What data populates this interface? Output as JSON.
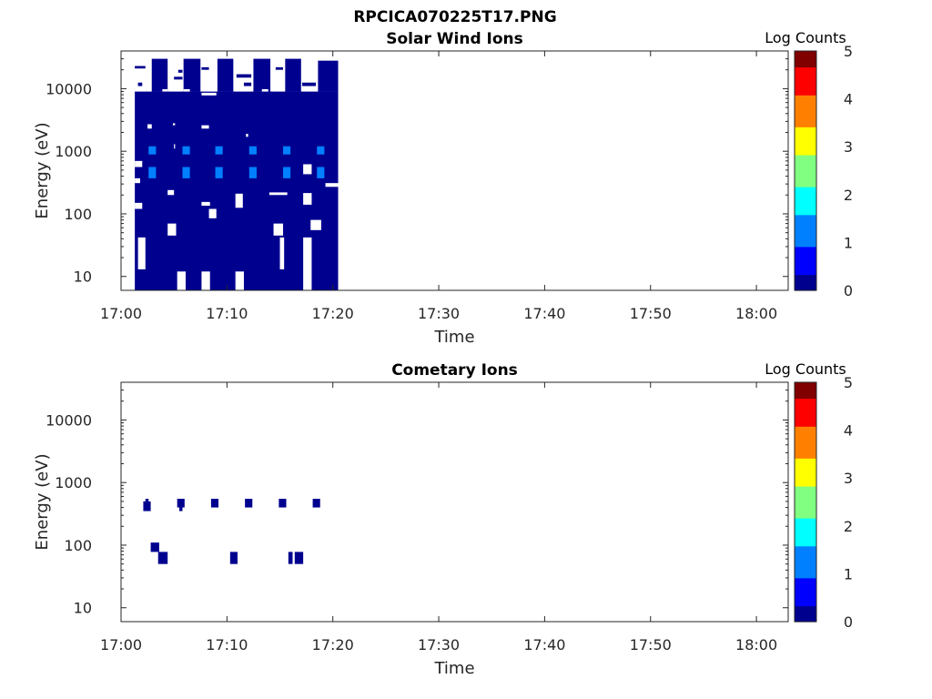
{
  "figure_title": "RPCICA070225T17.PNG",
  "colormap": [
    "#00008f",
    "#0000ff",
    "#0080ff",
    "#00ffff",
    "#80ff80",
    "#ffff00",
    "#ff8000",
    "#ff0000",
    "#800000"
  ],
  "chart_data": [
    {
      "type": "heatmap",
      "title": "Solar Wind Ions",
      "xlabel": "Time",
      "ylabel": "Energy (eV)",
      "colorbar_label": "Log Counts",
      "colorbar_ticks": [
        "0",
        "1",
        "2",
        "3",
        "4",
        "5"
      ],
      "colorbar_range": [
        0,
        5
      ],
      "xlim": [
        "17:00",
        "18:03"
      ],
      "ylim": [
        6,
        40000
      ],
      "y_scale": "log",
      "x_ticks": [
        "17:00",
        "17:10",
        "17:20",
        "17:30",
        "17:40",
        "17:50",
        "18:00"
      ],
      "y_ticks": [
        "10",
        "100",
        "1000",
        "10000"
      ],
      "grid": false,
      "cells": [
        {
          "t0": "17:01.3",
          "t1": "17:20.5",
          "e0": 6,
          "e1": 9000,
          "log_counts": 0.2
        },
        {
          "t0": "17:02.9",
          "t1": "17:04.4",
          "e0": 9000,
          "e1": 30000,
          "log_counts": 0.2
        },
        {
          "t0": "17:05.9",
          "t1": "17:07.5",
          "e0": 9000,
          "e1": 30000,
          "log_counts": 0.2
        },
        {
          "t0": "17:09.1",
          "t1": "17:10.6",
          "e0": 9000,
          "e1": 30000,
          "log_counts": 0.2
        },
        {
          "t0": "17:12.5",
          "t1": "17:14.1",
          "e0": 9000,
          "e1": 30000,
          "log_counts": 0.2
        },
        {
          "t0": "17:15.5",
          "t1": "17:17.0",
          "e0": 9000,
          "e1": 30000,
          "log_counts": 0.2
        },
        {
          "t0": "17:18.6",
          "t1": "17:20.5",
          "e0": 9000,
          "e1": 28000,
          "log_counts": 0.2
        },
        {
          "t0": "17:01.3",
          "t1": "17:02.8",
          "e0": 9000,
          "e1": 28000,
          "log_counts": null
        },
        {
          "t0": "17:04.5",
          "t1": "17:05.8",
          "e0": 9000,
          "e1": 30000,
          "log_counts": null
        },
        {
          "t0": "17:07.6",
          "t1": "17:09.0",
          "e0": 9000,
          "e1": 30000,
          "log_counts": null
        },
        {
          "t0": "17:10.7",
          "t1": "17:12.4",
          "e0": 9000,
          "e1": 30000,
          "log_counts": null
        },
        {
          "t0": "17:14.2",
          "t1": "17:15.4",
          "e0": 9000,
          "e1": 30000,
          "log_counts": null
        },
        {
          "t0": "17:17.1",
          "t1": "17:18.5",
          "e0": 9000,
          "e1": 30000,
          "log_counts": null
        },
        {
          "t0": "17:01.3",
          "t1": "17:02.3",
          "e0": 21000,
          "e1": 23000,
          "log_counts": 0.2
        },
        {
          "t0": "17:05.4",
          "t1": "17:05.8",
          "e0": 18000,
          "e1": 20000,
          "log_counts": 0.2
        },
        {
          "t0": "17:05.0",
          "t1": "17:05.8",
          "e0": 14000,
          "e1": 15500,
          "log_counts": 0.2
        },
        {
          "t0": "17:07.6",
          "t1": "17:08.3",
          "e0": 20000,
          "e1": 22000,
          "log_counts": 0.2
        },
        {
          "t0": "17:10.9",
          "t1": "17:12.3",
          "e0": 15000,
          "e1": 17000,
          "log_counts": 0.2
        },
        {
          "t0": "17:11.6",
          "t1": "17:12.3",
          "e0": 11000,
          "e1": 12500,
          "log_counts": 0.2
        },
        {
          "t0": "17:14.6",
          "t1": "17:15.3",
          "e0": 20000,
          "e1": 22000,
          "log_counts": 0.2
        },
        {
          "t0": "17:17.1",
          "t1": "17:18.4",
          "e0": 11000,
          "e1": 12500,
          "log_counts": 0.2
        },
        {
          "t0": "17:01.6",
          "t1": "17:02.0",
          "e0": 11000,
          "e1": 12500,
          "log_counts": 0.2
        },
        {
          "t0": "17:02.5",
          "t1": "17:02.9",
          "e0": 2300,
          "e1": 2700,
          "log_counts": null
        },
        {
          "t0": "17:03.9",
          "t1": "17:04.4",
          "e0": 9000,
          "e1": 9800,
          "log_counts": null
        },
        {
          "t0": "17:05.9",
          "t1": "17:06.5",
          "e0": 9000,
          "e1": 9800,
          "log_counts": null
        },
        {
          "t0": "17:07.6",
          "t1": "17:09.0",
          "e0": 7800,
          "e1": 8600,
          "log_counts": null
        },
        {
          "t0": "17:04.9",
          "t1": "17:05.1",
          "e0": 2600,
          "e1": 2800,
          "log_counts": null
        },
        {
          "t0": "17:07.6",
          "t1": "17:08.3",
          "e0": 2300,
          "e1": 2600,
          "log_counts": null
        },
        {
          "t0": "17:13.3",
          "t1": "17:13.9",
          "e0": 9000,
          "e1": 9800,
          "log_counts": null
        },
        {
          "t0": "17:02.6",
          "t1": "17:03.3",
          "e0": 890,
          "e1": 1200,
          "log_counts": 1.0
        },
        {
          "t0": "17:05.8",
          "t1": "17:06.5",
          "e0": 890,
          "e1": 1200,
          "log_counts": 1.0
        },
        {
          "t0": "17:08.9",
          "t1": "17:09.6",
          "e0": 890,
          "e1": 1200,
          "log_counts": 1.0
        },
        {
          "t0": "17:12.1",
          "t1": "17:12.8",
          "e0": 890,
          "e1": 1200,
          "log_counts": 1.0
        },
        {
          "t0": "17:15.3",
          "t1": "17:16.0",
          "e0": 890,
          "e1": 1200,
          "log_counts": 1.0
        },
        {
          "t0": "17:18.5",
          "t1": "17:19.2",
          "e0": 890,
          "e1": 1200,
          "log_counts": 1.0
        },
        {
          "t0": "17:02.6",
          "t1": "17:03.3",
          "e0": 370,
          "e1": 560,
          "log_counts": 1.5
        },
        {
          "t0": "17:05.8",
          "t1": "17:06.5",
          "e0": 370,
          "e1": 560,
          "log_counts": 1.5
        },
        {
          "t0": "17:08.9",
          "t1": "17:09.6",
          "e0": 370,
          "e1": 560,
          "log_counts": 1.5
        },
        {
          "t0": "17:12.1",
          "t1": "17:12.8",
          "e0": 370,
          "e1": 560,
          "log_counts": 1.5
        },
        {
          "t0": "17:15.3",
          "t1": "17:16.0",
          "e0": 370,
          "e1": 560,
          "log_counts": 1.5
        },
        {
          "t0": "17:18.5",
          "t1": "17:19.2",
          "e0": 370,
          "e1": 560,
          "log_counts": 1.5
        },
        {
          "t0": "17:01.3",
          "t1": "17:02.0",
          "e0": 560,
          "e1": 700,
          "log_counts": null
        },
        {
          "t0": "17:01.3",
          "t1": "17:01.8",
          "e0": 310,
          "e1": 370,
          "log_counts": null
        },
        {
          "t0": "17:01.3",
          "t1": "17:02.0",
          "e0": 120,
          "e1": 150,
          "log_counts": null
        },
        {
          "t0": "17:04.4",
          "t1": "17:05.0",
          "e0": 200,
          "e1": 240,
          "log_counts": null
        },
        {
          "t0": "17:07.6",
          "t1": "17:08.4",
          "e0": 135,
          "e1": 155,
          "log_counts": null
        },
        {
          "t0": "17:08.3",
          "t1": "17:09.0",
          "e0": 85,
          "e1": 120,
          "log_counts": null
        },
        {
          "t0": "17:10.8",
          "t1": "17:11.5",
          "e0": 125,
          "e1": 210,
          "log_counts": null
        },
        {
          "t0": "17:14.0",
          "t1": "17:15.7",
          "e0": 200,
          "e1": 220,
          "log_counts": null
        },
        {
          "t0": "17:17.2",
          "t1": "17:18.0",
          "e0": 430,
          "e1": 620,
          "log_counts": null
        },
        {
          "t0": "17:17.2",
          "t1": "17:18.0",
          "e0": 140,
          "e1": 215,
          "log_counts": null
        },
        {
          "t0": "17:19.3",
          "t1": "17:20.5",
          "e0": 270,
          "e1": 310,
          "log_counts": null
        },
        {
          "t0": "17:04.4",
          "t1": "17:05.2",
          "e0": 45,
          "e1": 70,
          "log_counts": null
        },
        {
          "t0": "17:14.4",
          "t1": "17:15.3",
          "e0": 45,
          "e1": 70,
          "log_counts": null
        },
        {
          "t0": "17:17.9",
          "t1": "17:18.9",
          "e0": 55,
          "e1": 80,
          "log_counts": null
        },
        {
          "t0": "17:01.6",
          "t1": "17:02.3",
          "e0": 13,
          "e1": 42,
          "log_counts": null
        },
        {
          "t0": "17:15.0",
          "t1": "17:15.4",
          "e0": 13,
          "e1": 42,
          "log_counts": null
        },
        {
          "t0": "17:05.3",
          "t1": "17:06.1",
          "e0": 6,
          "e1": 12,
          "log_counts": null
        },
        {
          "t0": "17:07.6",
          "t1": "17:08.4",
          "e0": 6,
          "e1": 12,
          "log_counts": null
        },
        {
          "t0": "17:10.8",
          "t1": "17:11.6",
          "e0": 6,
          "e1": 12,
          "log_counts": null
        },
        {
          "t0": "17:17.2",
          "t1": "17:18.0",
          "e0": 6,
          "e1": 42,
          "log_counts": null
        },
        {
          "t0": "17:05.0",
          "t1": "17:05.1",
          "e0": 1100,
          "e1": 1300,
          "log_counts": null
        },
        {
          "t0": "17:11.8",
          "t1": "17:12.0",
          "e0": 1700,
          "e1": 1900,
          "log_counts": null
        }
      ]
    },
    {
      "type": "heatmap",
      "title": "Cometary Ions",
      "xlabel": "Time",
      "ylabel": "Energy (eV)",
      "colorbar_label": "Log Counts",
      "colorbar_ticks": [
        "0",
        "1",
        "2",
        "3",
        "4",
        "5"
      ],
      "colorbar_range": [
        0,
        5
      ],
      "xlim": [
        "17:00",
        "18:03"
      ],
      "ylim": [
        6,
        40000
      ],
      "y_scale": "log",
      "x_ticks": [
        "17:00",
        "17:10",
        "17:20",
        "17:30",
        "17:40",
        "17:50",
        "18:00"
      ],
      "y_ticks": [
        "10",
        "100",
        "1000",
        "10000"
      ],
      "grid": false,
      "cells": [
        {
          "t0": "17:02.1",
          "t1": "17:02.8",
          "e0": 350,
          "e1": 500,
          "log_counts": 0.2
        },
        {
          "t0": "17:02.3",
          "t1": "17:02.6",
          "e0": 500,
          "e1": 550,
          "log_counts": 0.2
        },
        {
          "t0": "17:05.3",
          "t1": "17:06.0",
          "e0": 400,
          "e1": 550,
          "log_counts": 0.2
        },
        {
          "t0": "17:05.5",
          "t1": "17:05.8",
          "e0": 350,
          "e1": 400,
          "log_counts": 0.2
        },
        {
          "t0": "17:08.5",
          "t1": "17:09.2",
          "e0": 400,
          "e1": 550,
          "log_counts": 0.2
        },
        {
          "t0": "17:11.7",
          "t1": "17:12.4",
          "e0": 400,
          "e1": 550,
          "log_counts": 0.2
        },
        {
          "t0": "17:14.9",
          "t1": "17:15.6",
          "e0": 400,
          "e1": 550,
          "log_counts": 0.2
        },
        {
          "t0": "17:18.1",
          "t1": "17:18.8",
          "e0": 400,
          "e1": 550,
          "log_counts": 0.2
        },
        {
          "t0": "17:02.8",
          "t1": "17:03.6",
          "e0": 78,
          "e1": 110,
          "log_counts": 0.2
        },
        {
          "t0": "17:03.5",
          "t1": "17:04.4",
          "e0": 50,
          "e1": 78,
          "log_counts": 0.2
        },
        {
          "t0": "17:10.3",
          "t1": "17:11.0",
          "e0": 50,
          "e1": 78,
          "log_counts": 0.2
        },
        {
          "t0": "17:15.8",
          "t1": "17:16.2",
          "e0": 50,
          "e1": 78,
          "log_counts": 0.2
        },
        {
          "t0": "17:16.4",
          "t1": "17:17.2",
          "e0": 50,
          "e1": 78,
          "log_counts": 0.2
        }
      ]
    }
  ]
}
